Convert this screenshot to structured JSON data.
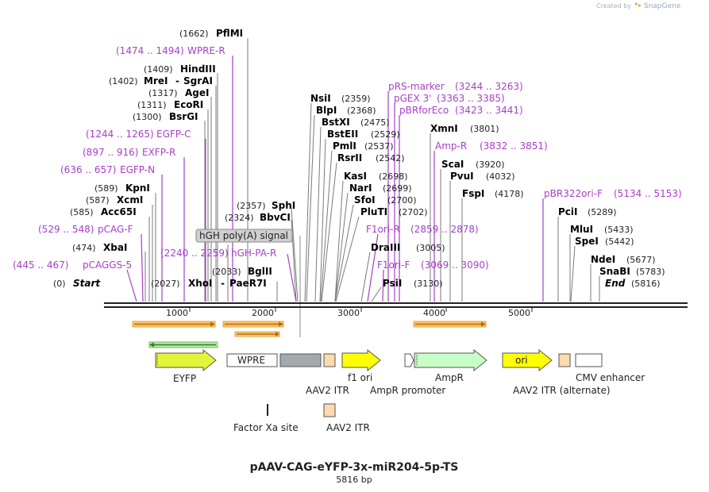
{
  "credit": {
    "prefix": "Created by",
    "brand": "SnapGene"
  },
  "title": "pAAV-CAG-eYFP-3x-miR204-5p-TS",
  "length_label": "5816 bp",
  "ruler": {
    "ticks": [
      "1000",
      "2000",
      "3000",
      "4000",
      "5000"
    ]
  },
  "sites_left": [
    {
      "pos": "(1662)",
      "name": "PflMI"
    },
    {
      "pos": "(1409)",
      "name": "HindIII"
    },
    {
      "pos": "(1402)",
      "name": "MreI",
      "extra": "SgrAI"
    },
    {
      "pos": "(1317)",
      "name": "AgeI"
    },
    {
      "pos": "(1311)",
      "name": "EcoRI"
    },
    {
      "pos": "(1300)",
      "name": "BsrGI"
    },
    {
      "pos": "(589)",
      "name": "KpnI"
    },
    {
      "pos": "(587)",
      "name": "XcmI"
    },
    {
      "pos": "(585)",
      "name": "Acc65I"
    },
    {
      "pos": "(474)",
      "name": "XbaI"
    },
    {
      "pos": "(0)",
      "name": "Start"
    },
    {
      "pos": "(2027)",
      "name": "XhoI",
      "extra": "PaeR7I"
    },
    {
      "pos": "(2357)",
      "name": "SphI"
    },
    {
      "pos": "(2324)",
      "name": "BbvCI"
    },
    {
      "pos": "(2033)",
      "name": "BglII"
    }
  ],
  "sites_right": [
    {
      "name": "NsiI",
      "pos": "(2359)"
    },
    {
      "name": "BlpI",
      "pos": "(2368)"
    },
    {
      "name": "BstXI",
      "pos": "(2475)"
    },
    {
      "name": "BstEII",
      "pos": "(2529)"
    },
    {
      "name": "PmlI",
      "pos": "(2537)"
    },
    {
      "name": "RsrII",
      "pos": "(2542)"
    },
    {
      "name": "KasI",
      "pos": "(2698)"
    },
    {
      "name": "NarI",
      "pos": "(2699)"
    },
    {
      "name": "SfoI",
      "pos": "(2700)"
    },
    {
      "name": "PluTI",
      "pos": "(2702)"
    },
    {
      "name": "DraIII",
      "pos": "(3005)"
    },
    {
      "name": "PsiI",
      "pos": "(3130)"
    },
    {
      "name": "XmnI",
      "pos": "(3801)"
    },
    {
      "name": "ScaI",
      "pos": "(3920)"
    },
    {
      "name": "PvuI",
      "pos": "(4032)"
    },
    {
      "name": "FspI",
      "pos": "(4178)"
    },
    {
      "name": "PciI",
      "pos": "(5289)"
    },
    {
      "name": "MluI",
      "pos": "(5433)"
    },
    {
      "name": "SpeI",
      "pos": "(5442)"
    },
    {
      "name": "NdeI",
      "pos": "(5677)"
    },
    {
      "name": "SnaBI",
      "pos": "(5783)"
    },
    {
      "name": "End",
      "pos": "(5816)"
    }
  ],
  "primers": [
    {
      "name": "WPRE-R",
      "range": "(1474 .. 1494)"
    },
    {
      "name": "EGFP-C",
      "range": "(1244 .. 1265)"
    },
    {
      "name": "EXFP-R",
      "range": "(897 .. 916)"
    },
    {
      "name": "EGFP-N",
      "range": "(636 .. 657)"
    },
    {
      "name": "pCAG-F",
      "range": "(529 .. 548)"
    },
    {
      "name": "pCAGGS-5",
      "range": "(445 .. 467)"
    },
    {
      "name": "hGH-PA-R",
      "range": "(2240 .. 2259)"
    },
    {
      "name": "pRS-marker",
      "range": "(3244 .. 3263)"
    },
    {
      "name": "pGEX 3'",
      "range": "(3363 .. 3385)"
    },
    {
      "name": "pBRforEco",
      "range": "(3423 .. 3441)"
    },
    {
      "name": "Amp-R",
      "range": "(3832 .. 3851)"
    },
    {
      "name": "F1ori-R",
      "range": "(2859 .. 2878)"
    },
    {
      "name": "F1ori-F",
      "range": "(3069 .. 3090)"
    },
    {
      "name": "pBR322ori-F",
      "range": "(5134 .. 5153)"
    }
  ],
  "callout": "hGH poly(A) signal",
  "features": {
    "eyfp": "EYFP",
    "wpre": "WPRE",
    "aav2_itr": "AAV2 ITR",
    "f1_ori": "f1 ori",
    "ampr_promoter": "AmpR promoter",
    "ampr": "AmpR",
    "ori": "ori",
    "aav2_itr_alt": "AAV2 ITR (alternate)",
    "cmv_enhancer": "CMV enhancer"
  },
  "legend": {
    "factor_xa": "Factor Xa site",
    "aav2_itr": "AAV2 ITR"
  },
  "colors": {
    "primer": "#a83fc8",
    "eyfp": "#e2f53a",
    "f1ori": "#ffff00",
    "ampr": "#c8ffc8",
    "itr": "#ffd9b0",
    "hgh": "#a4a9b0",
    "misc_arrow": "#f0c060",
    "green_arrow": "#3c9a3c"
  }
}
